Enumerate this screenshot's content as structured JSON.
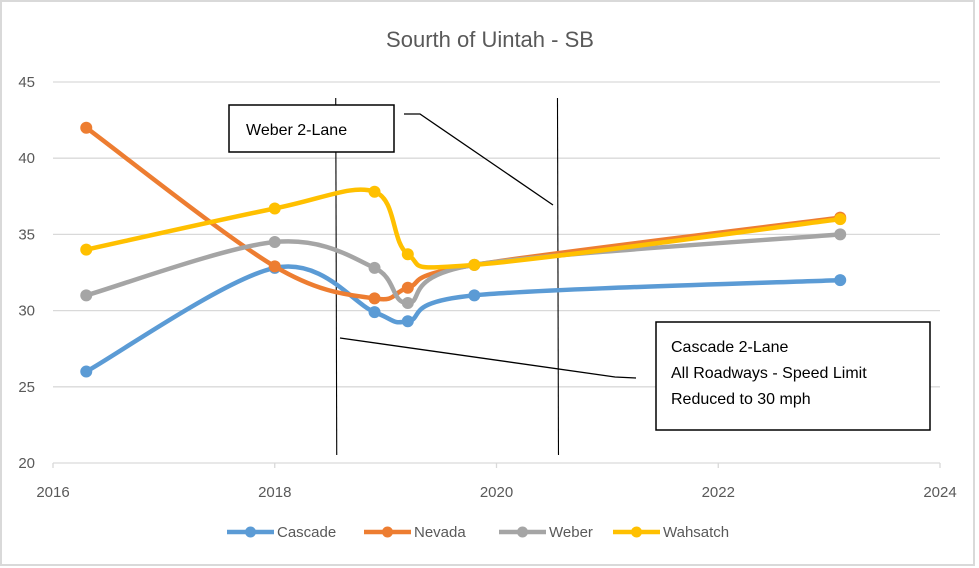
{
  "chart_data": {
    "type": "line",
    "title": "Sourth of Uintah - SB",
    "xlabel": "",
    "ylabel": "",
    "xlim": [
      2016,
      2024
    ],
    "ylim": [
      20,
      45
    ],
    "x_ticks": [
      "2016",
      "2018",
      "2020",
      "2022",
      "2024"
    ],
    "y_ticks": [
      "20",
      "25",
      "30",
      "35",
      "40",
      "45"
    ],
    "grid": "horizontal",
    "legend_position": "bottom",
    "smooth": true,
    "series": [
      {
        "name": "Cascade",
        "color": "#5b9bd5",
        "points": [
          [
            2016.3,
            26
          ],
          [
            2018.0,
            32.8
          ],
          [
            2018.9,
            29.9
          ],
          [
            2019.2,
            29.3
          ],
          [
            2019.8,
            31.0
          ],
          [
            2023.1,
            32.0
          ]
        ]
      },
      {
        "name": "Nevada",
        "color": "#ed7d31",
        "points": [
          [
            2016.3,
            42
          ],
          [
            2018.0,
            32.9
          ],
          [
            2018.9,
            30.8
          ],
          [
            2019.2,
            31.5
          ],
          [
            2019.8,
            33.0
          ],
          [
            2023.1,
            36.1
          ]
        ]
      },
      {
        "name": "Weber",
        "color": "#a5a5a5",
        "points": [
          [
            2016.3,
            31
          ],
          [
            2018.0,
            34.5
          ],
          [
            2018.9,
            32.8
          ],
          [
            2019.2,
            30.5
          ],
          [
            2019.8,
            33.0
          ],
          [
            2023.1,
            35.0
          ]
        ]
      },
      {
        "name": "Wahsatch",
        "color": "#ffc000",
        "points": [
          [
            2016.3,
            34
          ],
          [
            2018.0,
            36.7
          ],
          [
            2018.9,
            37.8
          ],
          [
            2019.2,
            33.7
          ],
          [
            2019.8,
            33.0
          ],
          [
            2023.1,
            36.0
          ]
        ]
      }
    ],
    "annotations": [
      {
        "id": "weber",
        "lines": [
          "Weber 2-Lane"
        ]
      },
      {
        "id": "cascade",
        "lines": [
          "Cascade 2-Lane",
          "All Roadways - Speed Limit",
          "Reduced to 30 mph"
        ]
      }
    ],
    "reference_lines_x": [
      2018.55,
      2020.55
    ]
  }
}
